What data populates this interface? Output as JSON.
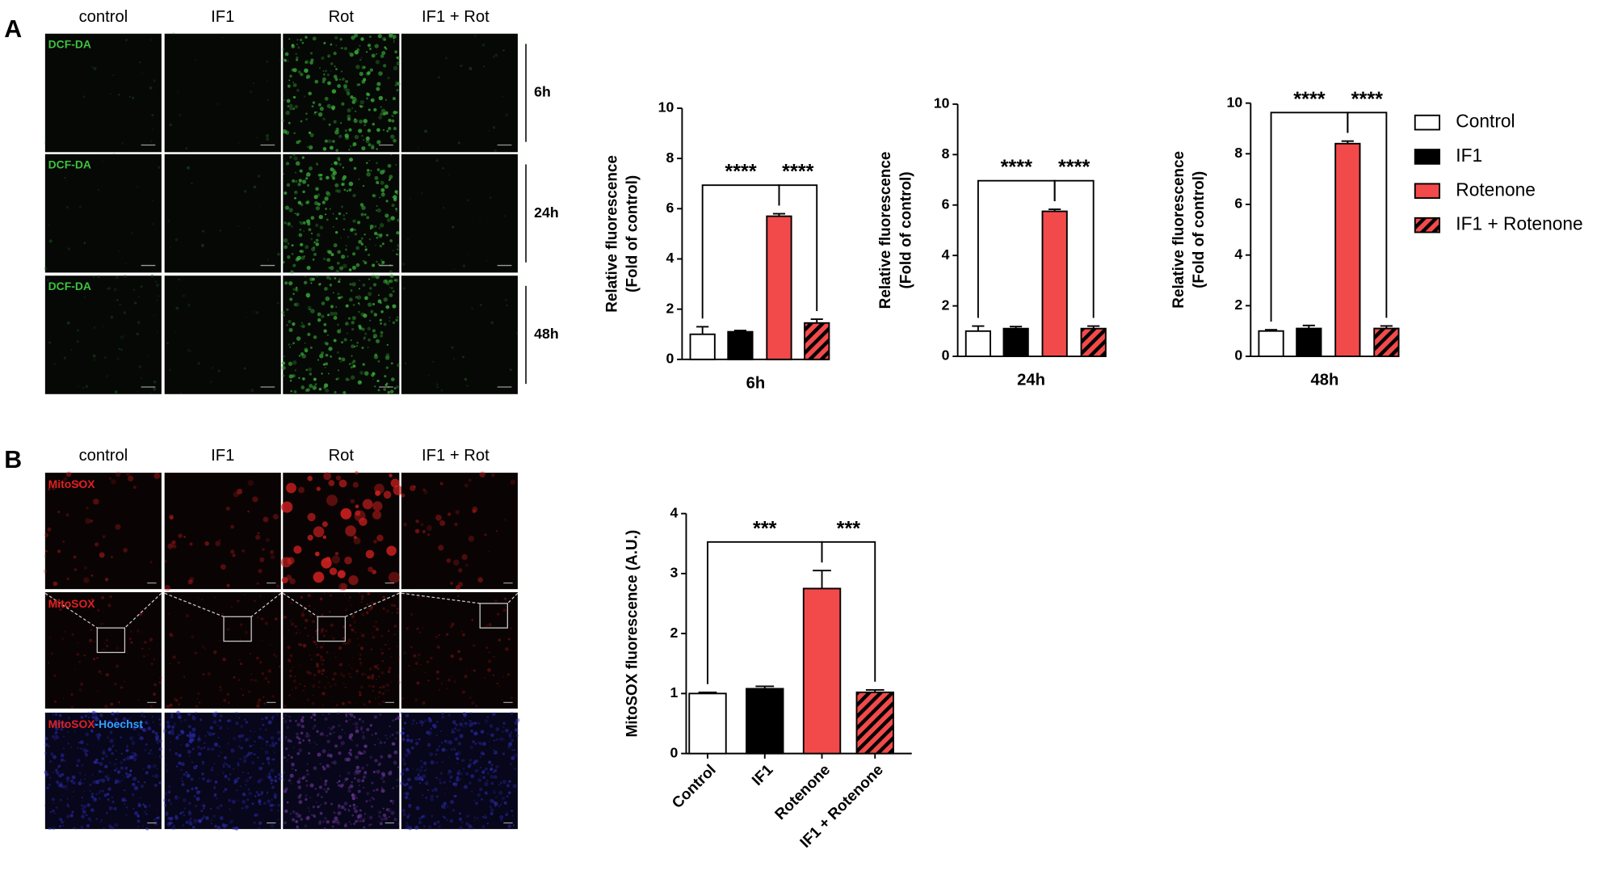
{
  "panel_labels": [
    "A",
    "B"
  ],
  "panel_a": {
    "columns": [
      "control",
      "IF1",
      "Rot",
      "IF1 + Rot"
    ],
    "rows": [
      "6h",
      "24h",
      "48h"
    ],
    "stain": "DCF-DA"
  },
  "panel_b": {
    "columns": [
      "control",
      "IF1",
      "Rot",
      "IF1 + Rot"
    ],
    "stain": "MitoSOX",
    "counterstain": "-Hoechst"
  },
  "chart_data": [
    {
      "type": "bar",
      "y_label": [
        "Relative fluorescence",
        "(Fold of control)"
      ],
      "categories": [
        "6h"
      ],
      "series": [
        {
          "color": "#ffffff",
          "pattern": "solid",
          "values": [
            1.0
          ],
          "errors": [
            0.3
          ]
        },
        {
          "color": "#000000",
          "pattern": "solid",
          "values": [
            1.1
          ],
          "errors": [
            0.05
          ]
        },
        {
          "color": "#f24a4a",
          "pattern": "solid",
          "values": [
            5.7
          ],
          "errors": [
            0.1
          ]
        },
        {
          "color": "#f24a4a",
          "pattern": "hatch",
          "values": [
            1.45
          ],
          "errors": [
            0.15
          ]
        }
      ],
      "ylim": [
        0,
        10
      ],
      "yticks": [
        0,
        2,
        4,
        6,
        8,
        10
      ],
      "annotations": [
        {
          "label": "****",
          "between": [
            0,
            2
          ]
        },
        {
          "label": "****",
          "between": [
            2,
            3
          ]
        }
      ]
    },
    {
      "type": "bar",
      "y_label": [
        "Relative fluorescence",
        "(Fold of control)"
      ],
      "categories": [
        "24h"
      ],
      "series": [
        {
          "color": "#ffffff",
          "pattern": "solid",
          "values": [
            1.0
          ],
          "errors": [
            0.2
          ]
        },
        {
          "color": "#000000",
          "pattern": "solid",
          "values": [
            1.1
          ],
          "errors": [
            0.08
          ]
        },
        {
          "color": "#f24a4a",
          "pattern": "solid",
          "values": [
            5.75
          ],
          "errors": [
            0.08
          ]
        },
        {
          "color": "#f24a4a",
          "pattern": "hatch",
          "values": [
            1.1
          ],
          "errors": [
            0.1
          ]
        }
      ],
      "ylim": [
        0,
        10
      ],
      "yticks": [
        0,
        2,
        4,
        6,
        8,
        10
      ],
      "annotations": [
        {
          "label": "****",
          "between": [
            0,
            2
          ]
        },
        {
          "label": "****",
          "between": [
            2,
            3
          ]
        }
      ]
    },
    {
      "type": "bar",
      "y_label": [
        "Relative fluorescence",
        "(Fold of control)"
      ],
      "categories": [
        "48h"
      ],
      "series": [
        {
          "name": "Control",
          "color": "#ffffff",
          "pattern": "solid",
          "values": [
            1.0
          ],
          "errors": [
            0.05
          ]
        },
        {
          "name": "IF1",
          "color": "#000000",
          "pattern": "solid",
          "values": [
            1.1
          ],
          "errors": [
            0.12
          ]
        },
        {
          "name": "Rotenone",
          "color": "#f24a4a",
          "pattern": "solid",
          "values": [
            8.4
          ],
          "errors": [
            0.1
          ]
        },
        {
          "name": "IF1 + Rotenone",
          "color": "#f24a4a",
          "pattern": "hatch",
          "values": [
            1.1
          ],
          "errors": [
            0.1
          ]
        }
      ],
      "ylim": [
        0,
        10
      ],
      "yticks": [
        0,
        2,
        4,
        6,
        8,
        10
      ],
      "annotations": [
        {
          "label": "****",
          "between": [
            0,
            2
          ]
        },
        {
          "label": "****",
          "between": [
            2,
            3
          ]
        }
      ]
    },
    {
      "type": "bar",
      "y_label": [
        "MitoSOX fluorescence (A.U.)"
      ],
      "categories": [
        "Control",
        "IF1",
        "Rotenone",
        "IF1 + Rotenone"
      ],
      "values": [
        1.0,
        1.08,
        2.75,
        1.02
      ],
      "errors": [
        0.02,
        0.04,
        0.3,
        0.04
      ],
      "colors": [
        "#ffffff",
        "#000000",
        "#f24a4a",
        "#f24a4a"
      ],
      "patterns": [
        "solid",
        "solid",
        "solid",
        "hatch"
      ],
      "ylim": [
        0,
        4
      ],
      "yticks": [
        0,
        1,
        2,
        3,
        4
      ],
      "annotations": [
        {
          "label": "***",
          "between": [
            0,
            2
          ]
        },
        {
          "label": "***",
          "between": [
            2,
            3
          ]
        }
      ]
    }
  ]
}
